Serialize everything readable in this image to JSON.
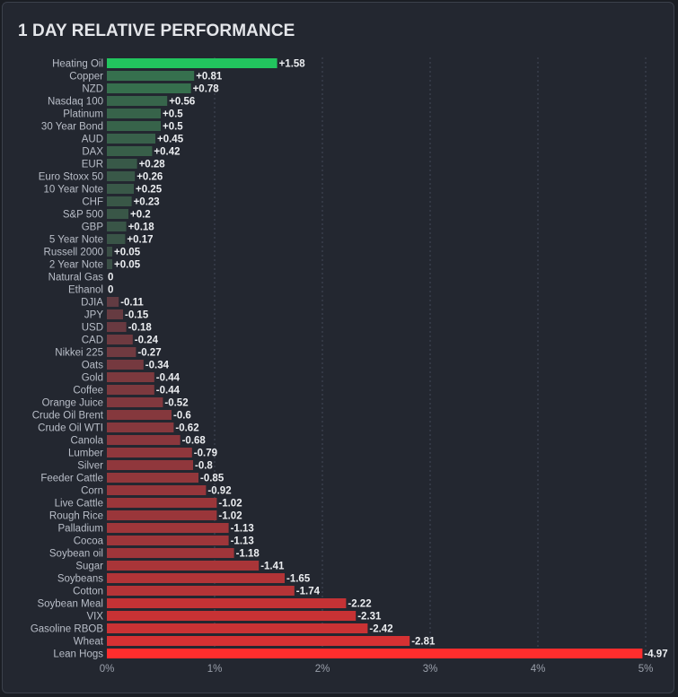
{
  "header": {
    "title": "1 DAY RELATIVE PERFORMANCE"
  },
  "chart_data": {
    "type": "bar",
    "orientation": "horizontal",
    "title": "1 DAY RELATIVE PERFORMANCE",
    "xlabel": "",
    "ylabel": "",
    "xlim": [
      0,
      5
    ],
    "x_ticks": [
      "0%",
      "1%",
      "2%",
      "3%",
      "4%",
      "5%"
    ],
    "grid": "vertical dashed",
    "value_axis_uses_absolute_value": true,
    "colors": {
      "positive_strong": "#22c55e",
      "positive_weak": "#3a4d45",
      "neutral": "#3d4a50",
      "negative_weak": "#4a3d45",
      "negative_strong": "#ff2d2d"
    },
    "categories": [
      "Heating Oil",
      "Copper",
      "NZD",
      "Nasdaq 100",
      "Platinum",
      "30 Year Bond",
      "AUD",
      "DAX",
      "EUR",
      "Euro Stoxx 50",
      "10 Year Note",
      "CHF",
      "S&P 500",
      "GBP",
      "5 Year Note",
      "Russell 2000",
      "2 Year Note",
      "Natural Gas",
      "Ethanol",
      "DJIA",
      "JPY",
      "USD",
      "CAD",
      "Nikkei 225",
      "Oats",
      "Gold",
      "Coffee",
      "Orange Juice",
      "Crude Oil Brent",
      "Crude Oil WTI",
      "Canola",
      "Lumber",
      "Silver",
      "Feeder Cattle",
      "Corn",
      "Live Cattle",
      "Rough Rice",
      "Palladium",
      "Cocoa",
      "Soybean oil",
      "Sugar",
      "Soybeans",
      "Cotton",
      "Soybean Meal",
      "VIX",
      "Gasoline RBOB",
      "Wheat",
      "Lean Hogs"
    ],
    "values": [
      1.58,
      0.81,
      0.78,
      0.56,
      0.5,
      0.5,
      0.45,
      0.42,
      0.28,
      0.26,
      0.25,
      0.23,
      0.2,
      0.18,
      0.17,
      0.05,
      0.05,
      0,
      0,
      -0.11,
      -0.15,
      -0.18,
      -0.24,
      -0.27,
      -0.34,
      -0.44,
      -0.44,
      -0.52,
      -0.6,
      -0.62,
      -0.68,
      -0.79,
      -0.8,
      -0.85,
      -0.92,
      -1.02,
      -1.02,
      -1.13,
      -1.13,
      -1.18,
      -1.41,
      -1.65,
      -1.74,
      -2.22,
      -2.31,
      -2.42,
      -2.81,
      -4.97
    ],
    "value_labels": [
      "+1.58",
      "+0.81",
      "+0.78",
      "+0.56",
      "+0.5",
      "+0.5",
      "+0.45",
      "+0.42",
      "+0.28",
      "+0.26",
      "+0.25",
      "+0.23",
      "+0.2",
      "+0.18",
      "+0.17",
      "+0.05",
      "+0.05",
      "0",
      "0",
      "-0.11",
      "-0.15",
      "-0.18",
      "-0.24",
      "-0.27",
      "-0.34",
      "-0.44",
      "-0.44",
      "-0.52",
      "-0.6",
      "-0.62",
      "-0.68",
      "-0.79",
      "-0.8",
      "-0.85",
      "-0.92",
      "-1.02",
      "-1.02",
      "-1.13",
      "-1.13",
      "-1.18",
      "-1.41",
      "-1.65",
      "-1.74",
      "-2.22",
      "-2.31",
      "-2.42",
      "-2.81",
      "-4.97"
    ]
  }
}
